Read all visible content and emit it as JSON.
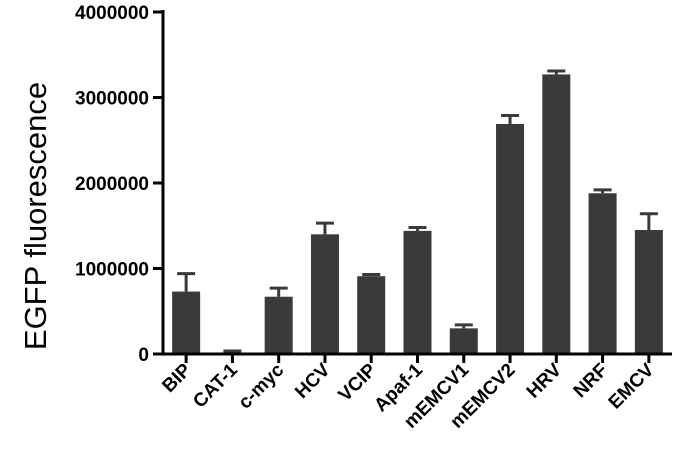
{
  "chart_data": {
    "type": "bar",
    "ylabel": "EGFP fluorescence",
    "xlabel": "",
    "ylim": [
      0,
      4000000
    ],
    "yticks": [
      0,
      1000000,
      2000000,
      3000000,
      4000000
    ],
    "ytick_labels": [
      "0",
      "1000000",
      "2000000",
      "3000000",
      "4000000"
    ],
    "categories": [
      "BIP",
      "CAT-1",
      "c-myc",
      "HCV",
      "VCIP",
      "Apaf-1",
      "mEMCV1",
      "mEMCV2",
      "HRV",
      "NRF",
      "EMCV"
    ],
    "values": [
      730000,
      10000,
      670000,
      1400000,
      910000,
      1440000,
      300000,
      2690000,
      3270000,
      1880000,
      1450000
    ],
    "errors": [
      210000,
      25000,
      100000,
      130000,
      20000,
      40000,
      40000,
      100000,
      40000,
      40000,
      190000
    ],
    "bar_color": "#3a3a3a",
    "grid": false,
    "legend": "none"
  }
}
